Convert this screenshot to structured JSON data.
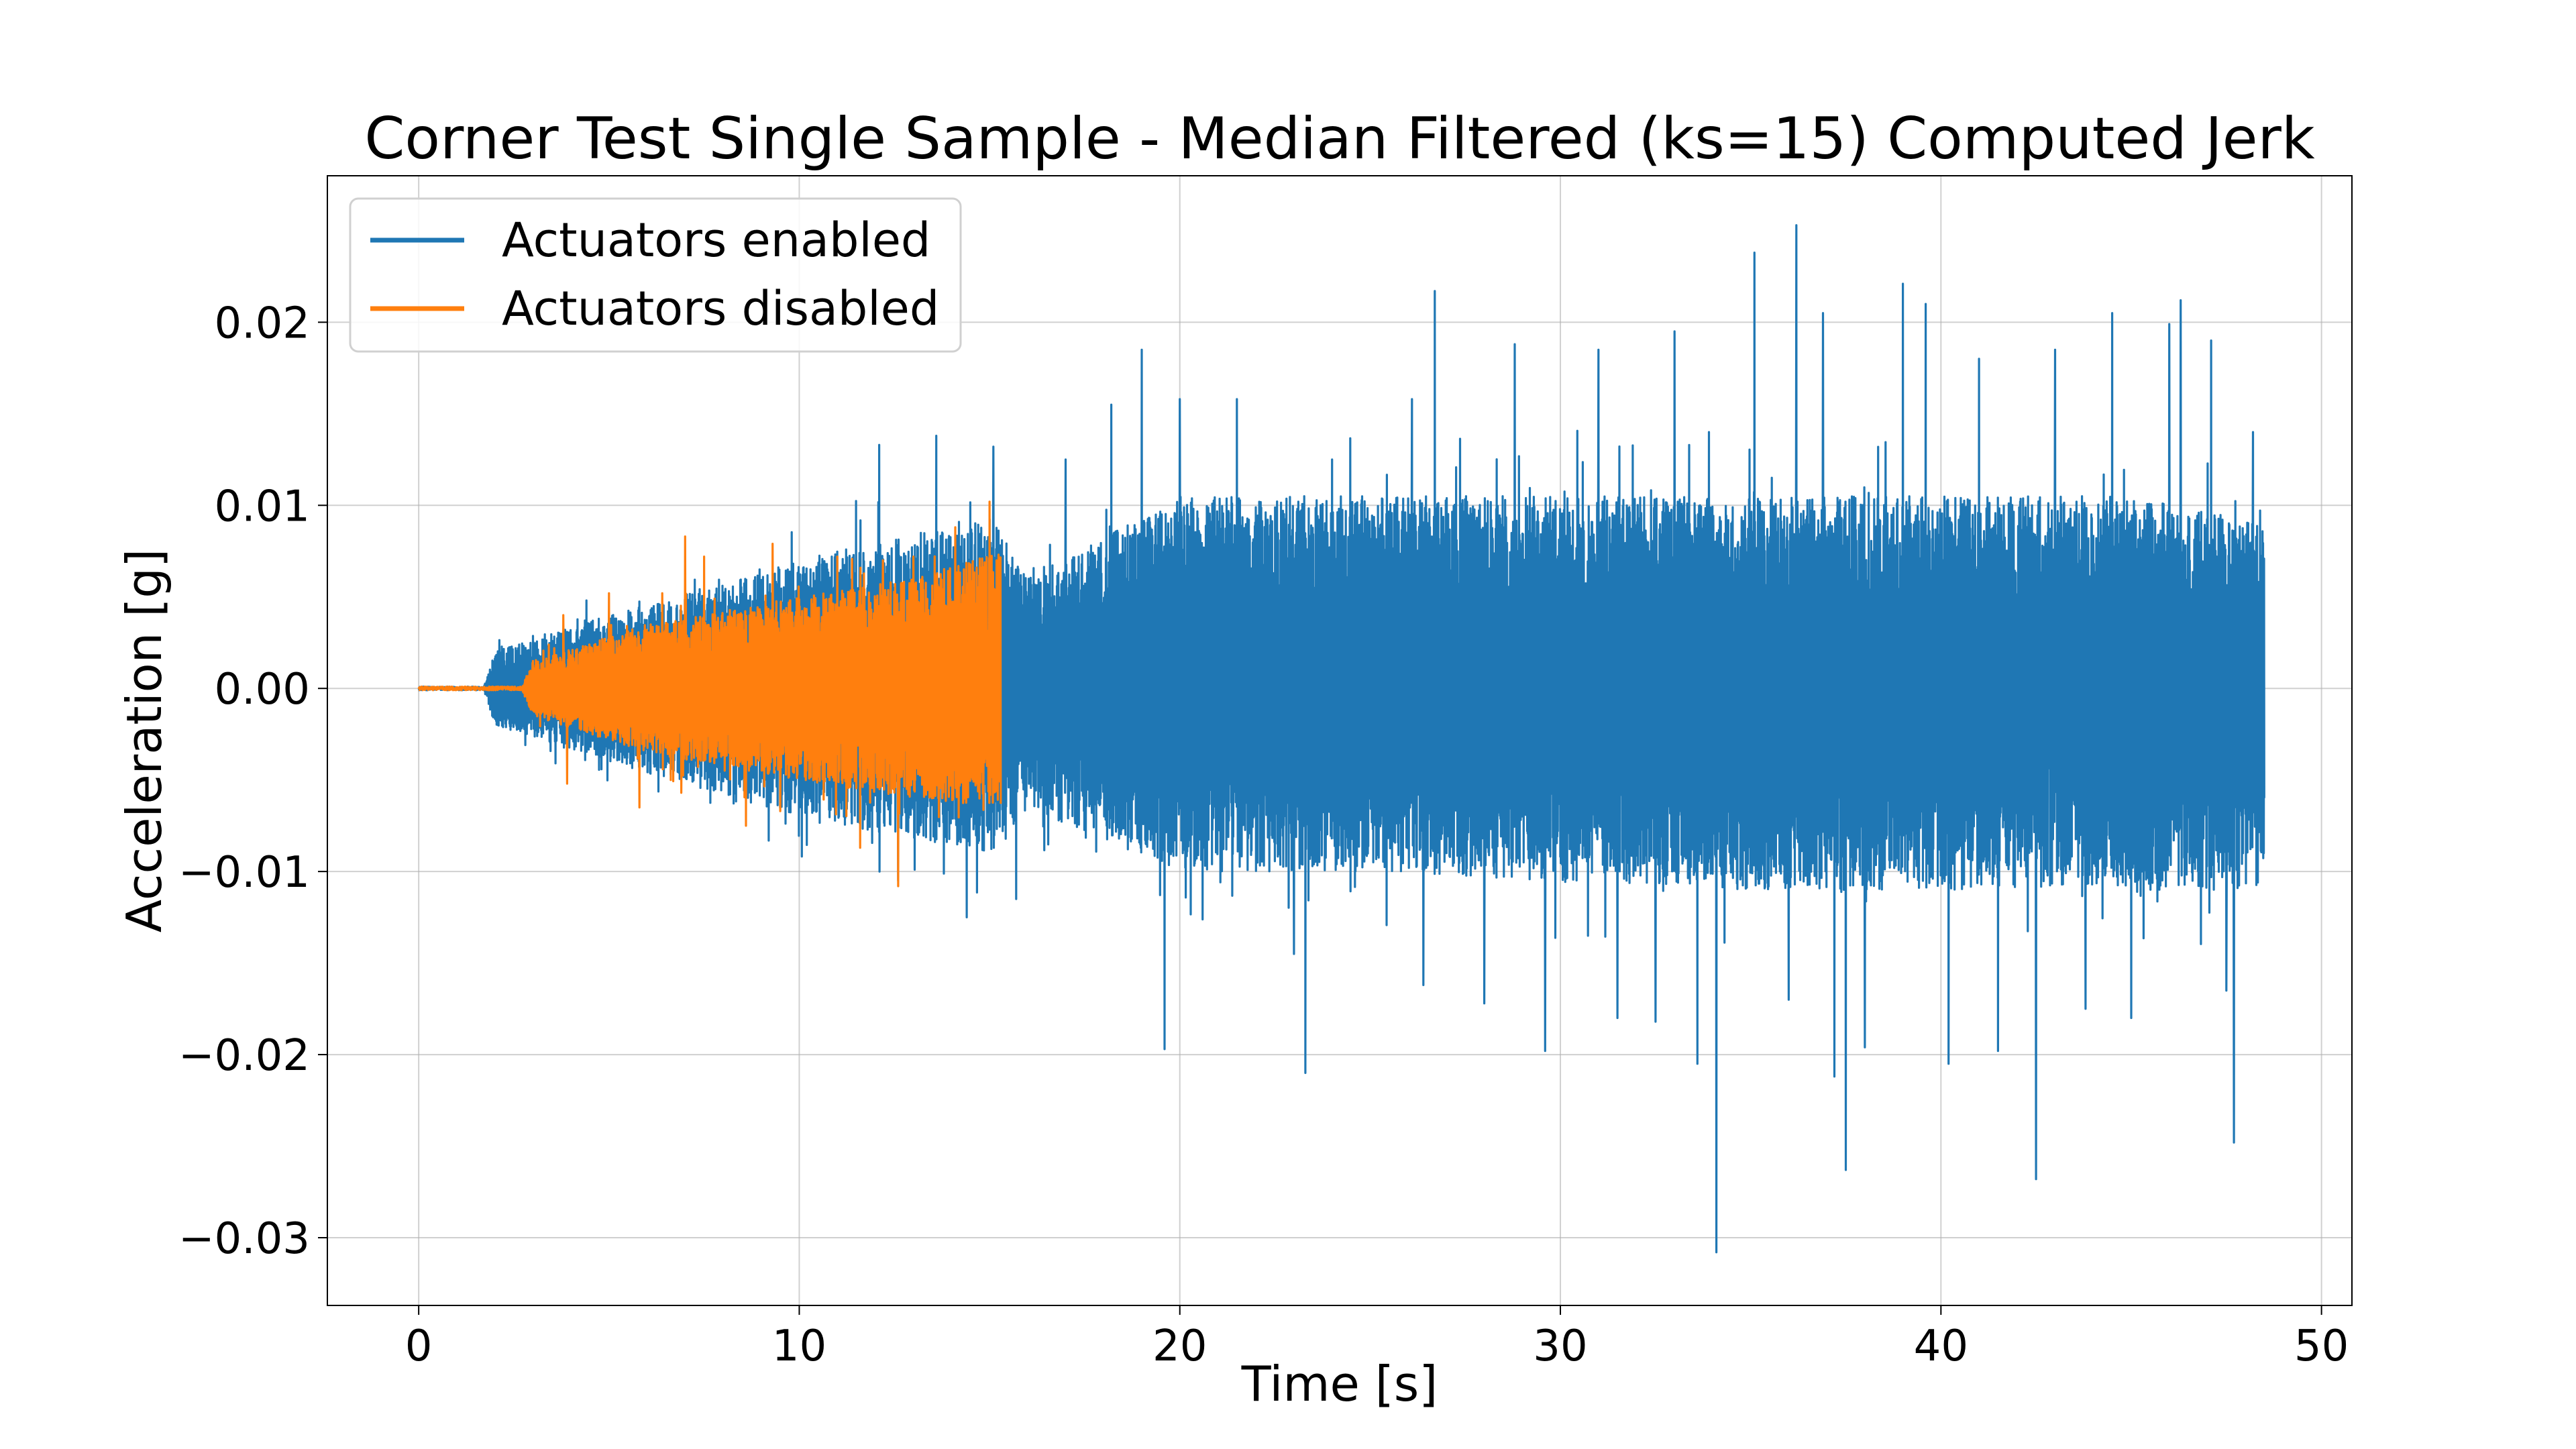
{
  "chart_data": {
    "type": "line",
    "title": "Corner Test Single Sample - Median Filtered (ks=15) Computed Jerk",
    "xlabel": "Time [s]",
    "ylabel": "Acceleration [g]",
    "xlim": [
      -2.4,
      50.8
    ],
    "ylim": [
      -0.0337,
      0.028
    ],
    "xticks": [
      0,
      10,
      20,
      30,
      40,
      50
    ],
    "xtick_labels": [
      "0",
      "10",
      "20",
      "30",
      "40",
      "50"
    ],
    "yticks": [
      0.02,
      0.01,
      0.0,
      -0.01,
      -0.02,
      -0.03
    ],
    "ytick_labels": [
      "0.02",
      "0.01",
      "0.00",
      "−0.01",
      "−0.02",
      "−0.03"
    ],
    "grid": true,
    "legend_position": "top-left",
    "series": [
      {
        "name": "Actuators enabled",
        "color": "#1f77b4",
        "envelope": {
          "t": [
            0,
            1.7,
            2.0,
            5,
            10,
            15,
            16,
            20,
            25,
            30,
            35,
            40,
            45,
            48.5
          ],
          "upper": [
            0,
            0,
            0.002,
            0.004,
            0.007,
            0.0095,
            0.006,
            0.0105,
            0.0105,
            0.0105,
            0.0105,
            0.0105,
            0.0105,
            0.009
          ],
          "lower": [
            0,
            0,
            -0.002,
            -0.004,
            -0.007,
            -0.009,
            -0.0065,
            -0.01,
            -0.01,
            -0.0105,
            -0.011,
            -0.011,
            -0.011,
            -0.011
          ]
        },
        "spikes": [
          {
            "t": 12.1,
            "v": 0.0133
          },
          {
            "t": 12.6,
            "v": -0.0105
          },
          {
            "t": 13.6,
            "v": 0.0138
          },
          {
            "t": 14.4,
            "v": -0.0125
          },
          {
            "t": 15.1,
            "v": 0.0132
          },
          {
            "t": 15.7,
            "v": -0.0115
          },
          {
            "t": 17.0,
            "v": 0.0125
          },
          {
            "t": 18.2,
            "v": 0.0155
          },
          {
            "t": 19.0,
            "v": 0.0185
          },
          {
            "t": 19.6,
            "v": -0.0197
          },
          {
            "t": 20.0,
            "v": 0.0158
          },
          {
            "t": 21.5,
            "v": 0.0158
          },
          {
            "t": 23.0,
            "v": -0.0145
          },
          {
            "t": 23.3,
            "v": -0.021
          },
          {
            "t": 24.0,
            "v": 0.0125
          },
          {
            "t": 26.1,
            "v": 0.0158
          },
          {
            "t": 26.4,
            "v": -0.0162
          },
          {
            "t": 26.7,
            "v": 0.0217
          },
          {
            "t": 28.0,
            "v": -0.0172
          },
          {
            "t": 28.8,
            "v": 0.0188
          },
          {
            "t": 29.6,
            "v": -0.0198
          },
          {
            "t": 31.0,
            "v": 0.0185
          },
          {
            "t": 31.5,
            "v": -0.018
          },
          {
            "t": 32.5,
            "v": -0.0182
          },
          {
            "t": 33.0,
            "v": 0.0195
          },
          {
            "t": 33.6,
            "v": -0.0205
          },
          {
            "t": 34.1,
            "v": -0.0308
          },
          {
            "t": 35.1,
            "v": 0.0238
          },
          {
            "t": 36.0,
            "v": -0.017
          },
          {
            "t": 36.2,
            "v": 0.0253
          },
          {
            "t": 36.9,
            "v": 0.0205
          },
          {
            "t": 37.2,
            "v": -0.0212
          },
          {
            "t": 37.5,
            "v": -0.0263
          },
          {
            "t": 38.0,
            "v": -0.0196
          },
          {
            "t": 39.0,
            "v": 0.0221
          },
          {
            "t": 39.6,
            "v": 0.021
          },
          {
            "t": 40.2,
            "v": -0.0205
          },
          {
            "t": 41.0,
            "v": 0.018
          },
          {
            "t": 41.5,
            "v": -0.0198
          },
          {
            "t": 42.5,
            "v": -0.0268
          },
          {
            "t": 43.0,
            "v": 0.0185
          },
          {
            "t": 43.8,
            "v": -0.0175
          },
          {
            "t": 44.5,
            "v": 0.0205
          },
          {
            "t": 45.0,
            "v": -0.018
          },
          {
            "t": 46.0,
            "v": 0.0199
          },
          {
            "t": 46.3,
            "v": 0.0212
          },
          {
            "t": 47.1,
            "v": 0.019
          },
          {
            "t": 47.5,
            "v": -0.0165
          },
          {
            "t": 47.7,
            "v": -0.0248
          },
          {
            "t": 48.2,
            "v": 0.014
          }
        ]
      },
      {
        "name": "Actuators disabled",
        "color": "#ff7f0e",
        "envelope": {
          "t": [
            0,
            2.7,
            3.0,
            6,
            10,
            13,
            15.3
          ],
          "upper": [
            0,
            0,
            0.0015,
            0.0035,
            0.005,
            0.006,
            0.0075
          ],
          "lower": [
            0,
            0,
            -0.0015,
            -0.0035,
            -0.005,
            -0.006,
            -0.0065
          ]
        },
        "spikes": [
          {
            "t": 3.8,
            "v": 0.004
          },
          {
            "t": 3.9,
            "v": -0.0052
          },
          {
            "t": 5.0,
            "v": 0.0052
          },
          {
            "t": 5.8,
            "v": -0.0065
          },
          {
            "t": 6.4,
            "v": 0.0052
          },
          {
            "t": 6.9,
            "v": -0.0057
          },
          {
            "t": 7.0,
            "v": 0.0083
          },
          {
            "t": 7.5,
            "v": 0.0072
          },
          {
            "t": 8.6,
            "v": -0.0075
          },
          {
            "t": 9.3,
            "v": 0.0079
          },
          {
            "t": 9.5,
            "v": -0.0067
          },
          {
            "t": 11.0,
            "v": 0.0072
          },
          {
            "t": 11.6,
            "v": -0.0087
          },
          {
            "t": 12.2,
            "v": 0.007
          },
          {
            "t": 12.6,
            "v": -0.0108
          },
          {
            "t": 13.0,
            "v": 0.0072
          },
          {
            "t": 14.1,
            "v": 0.0088
          },
          {
            "t": 15.0,
            "v": 0.0102
          }
        ]
      }
    ]
  }
}
